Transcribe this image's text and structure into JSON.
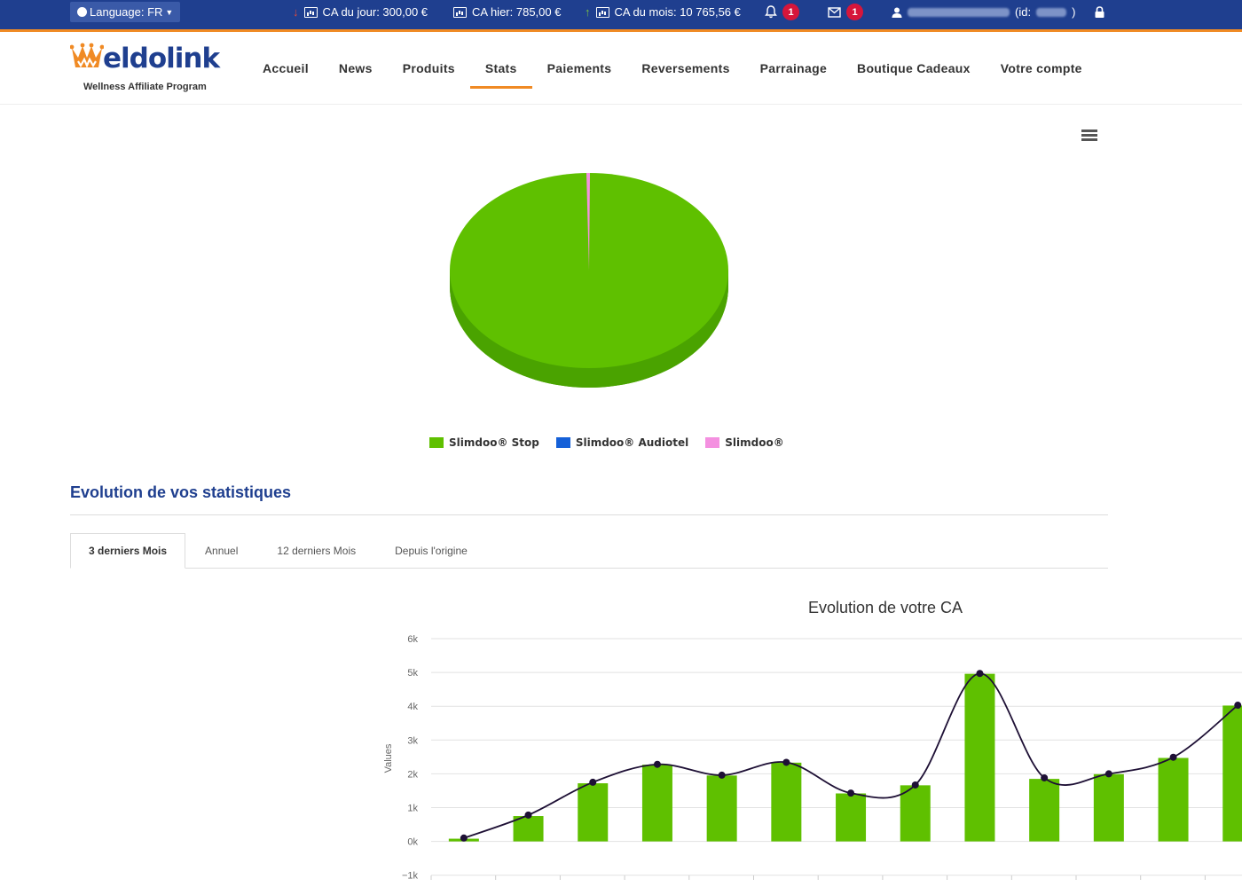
{
  "topbar": {
    "language": "Language: FR",
    "ca_jour": "CA du jour: 300,00 €",
    "ca_hier": "CA hier: 785,00 €",
    "ca_mois": "CA du mois: 10 765,56 €",
    "notifications_count": "1",
    "messages_count": "1",
    "user_id_label": "(id:",
    "user_id_close": ")"
  },
  "logo": {
    "name": "eldolink",
    "subtitle": "Wellness Affiliate Program"
  },
  "nav": {
    "items": [
      {
        "label": "Accueil"
      },
      {
        "label": "News"
      },
      {
        "label": "Produits"
      },
      {
        "label": "Stats"
      },
      {
        "label": "Paiements"
      },
      {
        "label": "Reversements"
      },
      {
        "label": "Parrainage"
      },
      {
        "label": "Boutique Cadeaux"
      },
      {
        "label": "Votre compte"
      }
    ],
    "active": "Stats"
  },
  "pie": {
    "legend": [
      {
        "label": "Slimdoo® Stop",
        "color": "#5fc000"
      },
      {
        "label": "Slimdoo® Audiotel",
        "color": "#1560d8"
      },
      {
        "label": "Slimdoo®",
        "color": "#f490e0"
      }
    ]
  },
  "section": {
    "title": "Evolution de vos statistiques",
    "tabs": [
      {
        "label": "3 derniers Mois"
      },
      {
        "label": "Annuel"
      },
      {
        "label": "12 derniers Mois"
      },
      {
        "label": "Depuis l'origine"
      }
    ],
    "active_tab": "3 derniers Mois"
  },
  "chart_data": [
    {
      "type": "pie",
      "series": [
        {
          "name": "Slimdoo® Stop",
          "value": 99.6,
          "color": "#5fc000"
        },
        {
          "name": "Slimdoo® Audiotel",
          "value": 0,
          "color": "#1560d8"
        },
        {
          "name": "Slimdoo®",
          "value": 0.4,
          "color": "#f490e0"
        }
      ]
    },
    {
      "type": "bar",
      "title": "Evolution de votre CA",
      "ylabel": "Values",
      "yticks": [
        "6k",
        "5k",
        "4k",
        "3k",
        "2k",
        "1k",
        "0k",
        "−1k"
      ],
      "ylim": [
        -1000,
        6000
      ],
      "grid": true,
      "bar_values": [
        80,
        750,
        1720,
        2270,
        1950,
        2330,
        1420,
        1660,
        4960,
        1850,
        1990,
        2470,
        4020
      ],
      "line_values": [
        100,
        780,
        1750,
        2280,
        1960,
        2340,
        1430,
        1670,
        4970,
        1880,
        2000,
        2490,
        4030
      ],
      "bar_color": "#5fc000",
      "line_color": "#1e1035"
    }
  ]
}
